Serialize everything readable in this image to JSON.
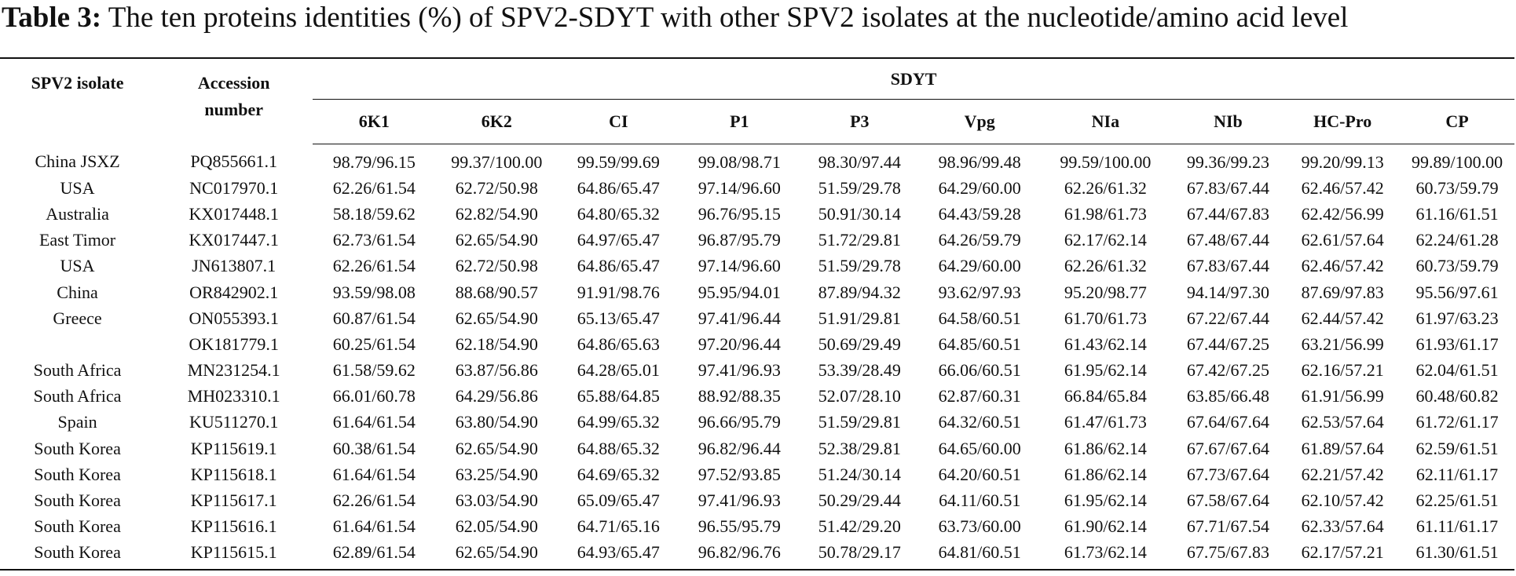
{
  "caption": {
    "label": "Table 3:",
    "text": "The ten proteins identities (%) of SPV2-SDYT with other SPV2 isolates at the nucleotide/amino acid level"
  },
  "table": {
    "header": {
      "isolate": "SPV2 isolate",
      "accession": "Accession number",
      "group": "SDYT",
      "proteins": [
        "6K1",
        "6K2",
        "CI",
        "P1",
        "P3",
        "Vpg",
        "NIa",
        "NIb",
        "HC-Pro",
        "CP"
      ]
    },
    "rows": [
      {
        "isolate": "China JSXZ",
        "accession": "PQ855661.1",
        "values": [
          "98.79/96.15",
          "99.37/100.00",
          "99.59/99.69",
          "99.08/98.71",
          "98.30/97.44",
          "98.96/99.48",
          "99.59/100.00",
          "99.36/99.23",
          "99.20/99.13",
          "99.89/100.00"
        ]
      },
      {
        "isolate": "USA",
        "accession": "NC017970.1",
        "values": [
          "62.26/61.54",
          "62.72/50.98",
          "64.86/65.47",
          "97.14/96.60",
          "51.59/29.78",
          "64.29/60.00",
          "62.26/61.32",
          "67.83/67.44",
          "62.46/57.42",
          "60.73/59.79"
        ]
      },
      {
        "isolate": "Australia",
        "accession": "KX017448.1",
        "values": [
          "58.18/59.62",
          "62.82/54.90",
          "64.80/65.32",
          "96.76/95.15",
          "50.91/30.14",
          "64.43/59.28",
          "61.98/61.73",
          "67.44/67.83",
          "62.42/56.99",
          "61.16/61.51"
        ]
      },
      {
        "isolate": "East Timor",
        "accession": "KX017447.1",
        "values": [
          "62.73/61.54",
          "62.65/54.90",
          "64.97/65.47",
          "96.87/95.79",
          "51.72/29.81",
          "64.26/59.79",
          "62.17/62.14",
          "67.48/67.44",
          "62.61/57.64",
          "62.24/61.28"
        ]
      },
      {
        "isolate": "USA",
        "accession": "JN613807.1",
        "values": [
          "62.26/61.54",
          "62.72/50.98",
          "64.86/65.47",
          "97.14/96.60",
          "51.59/29.78",
          "64.29/60.00",
          "62.26/61.32",
          "67.83/67.44",
          "62.46/57.42",
          "60.73/59.79"
        ]
      },
      {
        "isolate": "China",
        "accession": "OR842902.1",
        "values": [
          "93.59/98.08",
          "88.68/90.57",
          "91.91/98.76",
          "95.95/94.01",
          "87.89/94.32",
          "93.62/97.93",
          "95.20/98.77",
          "94.14/97.30",
          "87.69/97.83",
          "95.56/97.61"
        ]
      },
      {
        "isolate": "Greece",
        "accession": "ON055393.1",
        "values": [
          "60.87/61.54",
          "62.65/54.90",
          "65.13/65.47",
          "97.41/96.44",
          "51.91/29.81",
          "64.58/60.51",
          "61.70/61.73",
          "67.22/67.44",
          "62.44/57.42",
          "61.97/63.23"
        ]
      },
      {
        "isolate": "",
        "accession": "OK181779.1",
        "values": [
          "60.25/61.54",
          "62.18/54.90",
          "64.86/65.63",
          "97.20/96.44",
          "50.69/29.49",
          "64.85/60.51",
          "61.43/62.14",
          "67.44/67.25",
          "63.21/56.99",
          "61.93/61.17"
        ]
      },
      {
        "isolate": "South Africa",
        "accession": "MN231254.1",
        "values": [
          "61.58/59.62",
          "63.87/56.86",
          "64.28/65.01",
          "97.41/96.93",
          "53.39/28.49",
          "66.06/60.51",
          "61.95/62.14",
          "67.42/67.25",
          "62.16/57.21",
          "62.04/61.51"
        ]
      },
      {
        "isolate": "South Africa",
        "accession": "MH023310.1",
        "values": [
          "66.01/60.78",
          "64.29/56.86",
          "65.88/64.85",
          "88.92/88.35",
          "52.07/28.10",
          "62.87/60.31",
          "66.84/65.84",
          "63.85/66.48",
          "61.91/56.99",
          "60.48/60.82"
        ]
      },
      {
        "isolate": "Spain",
        "accession": "KU511270.1",
        "values": [
          "61.64/61.54",
          "63.80/54.90",
          "64.99/65.32",
          "96.66/95.79",
          "51.59/29.81",
          "64.32/60.51",
          "61.47/61.73",
          "67.64/67.64",
          "62.53/57.64",
          "61.72/61.17"
        ]
      },
      {
        "isolate": "South Korea",
        "accession": "KP115619.1",
        "values": [
          "60.38/61.54",
          "62.65/54.90",
          "64.88/65.32",
          "96.82/96.44",
          "52.38/29.81",
          "64.65/60.00",
          "61.86/62.14",
          "67.67/67.64",
          "61.89/57.64",
          "62.59/61.51"
        ]
      },
      {
        "isolate": "South Korea",
        "accession": "KP115618.1",
        "values": [
          "61.64/61.54",
          "63.25/54.90",
          "64.69/65.32",
          "97.52/93.85",
          "51.24/30.14",
          "64.20/60.51",
          "61.86/62.14",
          "67.73/67.64",
          "62.21/57.42",
          "62.11/61.17"
        ]
      },
      {
        "isolate": "South Korea",
        "accession": "KP115617.1",
        "values": [
          "62.26/61.54",
          "63.03/54.90",
          "65.09/65.47",
          "97.41/96.93",
          "50.29/29.44",
          "64.11/60.51",
          "61.95/62.14",
          "67.58/67.64",
          "62.10/57.42",
          "62.25/61.51"
        ]
      },
      {
        "isolate": "South Korea",
        "accession": "KP115616.1",
        "values": [
          "61.64/61.54",
          "62.05/54.90",
          "64.71/65.16",
          "96.55/95.79",
          "51.42/29.20",
          "63.73/60.00",
          "61.90/62.14",
          "67.71/67.54",
          "62.33/57.64",
          "61.11/61.17"
        ]
      },
      {
        "isolate": "South Korea",
        "accession": "KP115615.1",
        "values": [
          "62.89/61.54",
          "62.65/54.90",
          "64.93/65.47",
          "96.82/96.76",
          "50.78/29.17",
          "64.81/60.51",
          "61.73/62.14",
          "67.75/67.83",
          "62.17/57.21",
          "61.30/61.51"
        ]
      }
    ]
  }
}
